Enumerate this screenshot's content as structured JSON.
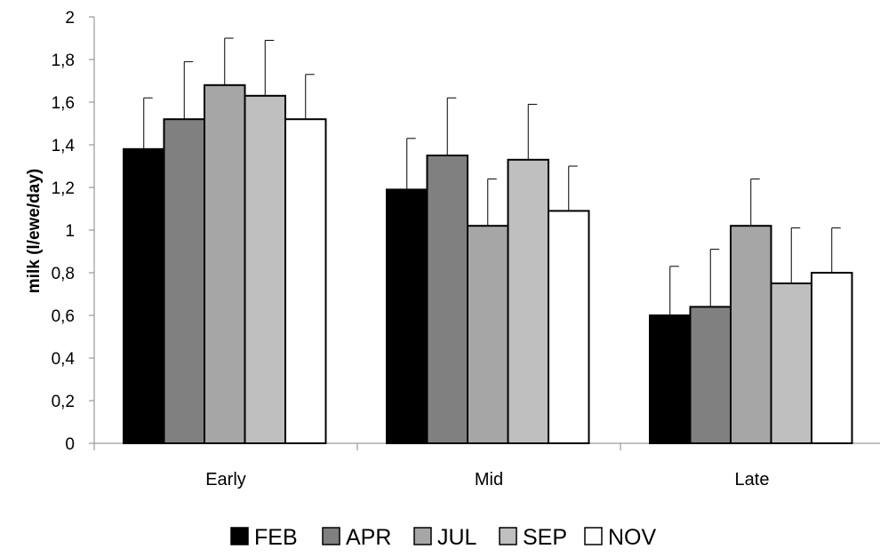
{
  "chart_data": {
    "type": "bar",
    "title": "",
    "xlabel": "",
    "ylabel": "milk (l/ewe/day)",
    "ylim": [
      0,
      2
    ],
    "yticks": [
      "0",
      "0,2",
      "0,4",
      "0,6",
      "0,8",
      "1",
      "1,2",
      "1,4",
      "1,6",
      "1,8",
      "2"
    ],
    "categories": [
      "Early",
      "Mid",
      "Late"
    ],
    "grid": false,
    "legend_position": "bottom",
    "series": [
      {
        "name": "FEB",
        "color": "#000000",
        "values": [
          1.38,
          1.19,
          0.6
        ],
        "errors": [
          0.24,
          0.24,
          0.23
        ]
      },
      {
        "name": "APR",
        "color": "#808080",
        "values": [
          1.52,
          1.35,
          0.64
        ],
        "errors": [
          0.27,
          0.27,
          0.27
        ]
      },
      {
        "name": "JUL",
        "color": "#a6a6a6",
        "values": [
          1.68,
          1.02,
          1.02
        ],
        "errors": [
          0.22,
          0.22,
          0.22
        ]
      },
      {
        "name": "SEP",
        "color": "#bfbfbf",
        "values": [
          1.63,
          1.33,
          0.75
        ],
        "errors": [
          0.26,
          0.26,
          0.26
        ]
      },
      {
        "name": "NOV",
        "color": "#ffffff",
        "values": [
          1.52,
          1.09,
          0.8
        ],
        "errors": [
          0.21,
          0.21,
          0.21
        ]
      }
    ]
  }
}
